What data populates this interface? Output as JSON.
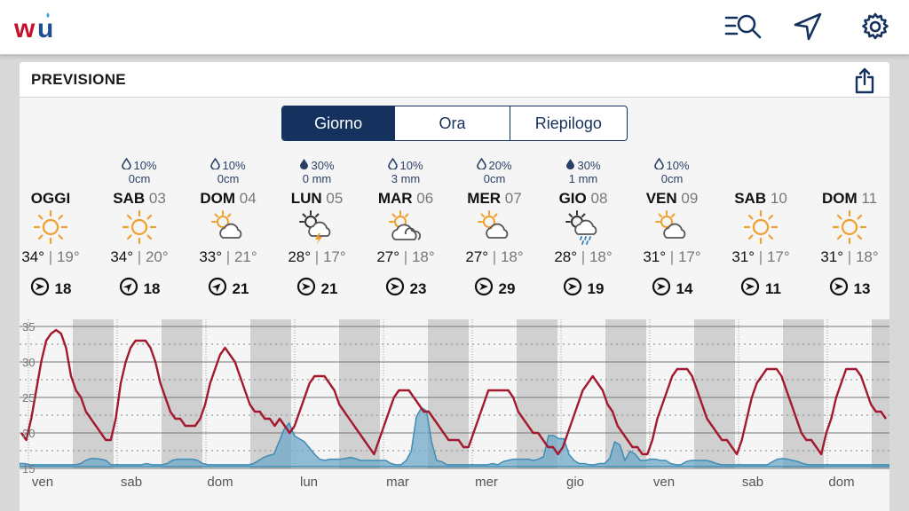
{
  "app": {
    "name": "Weather Underground",
    "colors": {
      "brand_red": "#c8102e",
      "brand_blue": "#1d4f91",
      "navy": "#15325f",
      "temp_line": "#a3192e",
      "precip_fill": "#6fa8c7"
    }
  },
  "toolbar": {
    "icons": [
      "search-list-icon",
      "location-arrow-icon",
      "gear-icon"
    ]
  },
  "forecast": {
    "title": "PREVISIONE",
    "tabs": [
      {
        "label": "Giorno",
        "active": true
      },
      {
        "label": "Ora",
        "active": false
      },
      {
        "label": "Riepilogo",
        "active": false
      }
    ],
    "days": [
      {
        "name": "OGGI",
        "date": "",
        "precip_pct": "",
        "precip_amt": "",
        "icon": "sunny-icon",
        "hi": "34°",
        "lo": "19°",
        "wind": "18",
        "wind_dir": "E"
      },
      {
        "name": "SAB",
        "date": "03",
        "precip_pct": "10%",
        "precip_amt": "0cm",
        "icon": "sunny-icon",
        "hi": "34°",
        "lo": "20°",
        "wind": "18",
        "wind_dir": "NE"
      },
      {
        "name": "DOM",
        "date": "04",
        "precip_pct": "10%",
        "precip_amt": "0cm",
        "icon": "partly-cloudy-icon",
        "hi": "33°",
        "lo": "21°",
        "wind": "21",
        "wind_dir": "NE"
      },
      {
        "name": "LUN",
        "date": "05",
        "precip_pct": "30%",
        "precip_amt": "0 mm",
        "icon": "thunderstorm-icon",
        "hi": "28°",
        "lo": "17°",
        "wind": "21",
        "wind_dir": "E"
      },
      {
        "name": "MAR",
        "date": "06",
        "precip_pct": "10%",
        "precip_amt": "3 mm",
        "icon": "cloudy-icon",
        "hi": "27°",
        "lo": "18°",
        "wind": "23",
        "wind_dir": "E"
      },
      {
        "name": "MER",
        "date": "07",
        "precip_pct": "20%",
        "precip_amt": "0cm",
        "icon": "partly-cloudy-icon",
        "hi": "27°",
        "lo": "18°",
        "wind": "29",
        "wind_dir": "E"
      },
      {
        "name": "GIO",
        "date": "08",
        "precip_pct": "30%",
        "precip_amt": "1 mm",
        "icon": "rain-icon",
        "hi": "28°",
        "lo": "18°",
        "wind": "19",
        "wind_dir": "E"
      },
      {
        "name": "VEN",
        "date": "09",
        "precip_pct": "10%",
        "precip_amt": "0cm",
        "icon": "partly-cloudy-icon",
        "hi": "31°",
        "lo": "17°",
        "wind": "14",
        "wind_dir": "E"
      },
      {
        "name": "SAB",
        "date": "10",
        "precip_pct": "",
        "precip_amt": "",
        "icon": "sunny-icon",
        "hi": "31°",
        "lo": "17°",
        "wind": "11",
        "wind_dir": "E"
      },
      {
        "name": "DOM",
        "date": "11",
        "precip_pct": "",
        "precip_amt": "",
        "icon": "sunny-icon",
        "hi": "31°",
        "lo": "18°",
        "wind": "13",
        "wind_dir": "E"
      }
    ]
  },
  "chart_data": {
    "type": "line",
    "y_ticks": [
      "35",
      "30",
      "25",
      "20",
      "15"
    ],
    "ylim": [
      15,
      36
    ],
    "x_labels": [
      "ven",
      "sab",
      "dom",
      "lun",
      "mar",
      "mer",
      "gio",
      "ven",
      "sab",
      "dom"
    ],
    "series": [
      {
        "kind": "temperature",
        "values": [
          20,
          19,
          22,
          26,
          30,
          33,
          34,
          34.5,
          34,
          32,
          28,
          26,
          25,
          23,
          22,
          21,
          20,
          19,
          19,
          22,
          27,
          30,
          32,
          33,
          33,
          33,
          32,
          30,
          27,
          25,
          23,
          22,
          22,
          21,
          21,
          21,
          22,
          24,
          27,
          29,
          31,
          32,
          31,
          30,
          28,
          26,
          24,
          23,
          23,
          22,
          22,
          21,
          22,
          21,
          20,
          21,
          23,
          25,
          27,
          28,
          28,
          28,
          27,
          26,
          24,
          23,
          22,
          21,
          20,
          19,
          18,
          17,
          19,
          21,
          23,
          25,
          26,
          26,
          26,
          25,
          24,
          23,
          23,
          22,
          21,
          20,
          19,
          19,
          19,
          18,
          18,
          20,
          22,
          24,
          26,
          26,
          26,
          26,
          26,
          25,
          23,
          22,
          21,
          20,
          20,
          19,
          18,
          18,
          17,
          18,
          20,
          22,
          24,
          26,
          27,
          28,
          27,
          26,
          24,
          23,
          21,
          20,
          19,
          18,
          18,
          17,
          17,
          19,
          22,
          24,
          26,
          28,
          29,
          29,
          29,
          28,
          26,
          24,
          22,
          21,
          20,
          19,
          19,
          18,
          17,
          19,
          22,
          25,
          27,
          28,
          29,
          29,
          29,
          28,
          26,
          24,
          22,
          20,
          19,
          19,
          18,
          17,
          20,
          22,
          25,
          27,
          29,
          29,
          29,
          28,
          26,
          24,
          23,
          23,
          22
        ]
      },
      {
        "kind": "precipitation",
        "values": [
          0.5,
          0.5,
          0.3,
          0.3,
          0.3,
          0.3,
          0.3,
          0.3,
          0.3,
          0.3,
          0.3,
          0.3,
          0.5,
          1,
          1.3,
          1.3,
          1.2,
          1,
          0.3,
          0.3,
          0.3,
          0.3,
          0.3,
          0.3,
          0.3,
          0.5,
          0.3,
          0.3,
          0.3,
          0.5,
          1,
          1.2,
          1.2,
          1.2,
          1.2,
          1,
          0.5,
          0.3,
          0.3,
          0.3,
          0.3,
          0.3,
          0.3,
          0.3,
          0.3,
          0.3,
          0.5,
          1,
          1.5,
          1.8,
          2,
          4,
          6,
          7,
          5,
          4.5,
          4,
          3,
          2,
          1.2,
          1,
          1.2,
          1.2,
          1.2,
          1.3,
          1.5,
          1.3,
          1,
          1,
          1,
          1,
          1,
          1,
          0.5,
          0.3,
          0.3,
          1,
          2.5,
          8,
          9.5,
          9,
          4,
          1,
          0.8,
          0.3,
          0.3,
          0.3,
          0.3,
          0.3,
          0.3,
          0.3,
          0.3,
          0.3,
          0.5,
          0.3,
          0.8,
          1,
          1.2,
          1.2,
          1.2,
          1.2,
          1,
          1.2,
          1.6,
          5,
          5,
          4.5,
          4.5,
          2,
          1,
          0.5,
          0.5,
          0.3,
          0.3,
          0.5,
          0.5,
          1.3,
          4,
          3.5,
          1,
          2.5,
          2,
          1,
          1,
          1.2,
          1.2,
          1,
          1,
          0.5,
          0.3,
          0.3,
          0.8,
          1,
          1,
          1,
          1,
          0.8,
          0.5,
          0.3,
          0.3,
          0.3,
          0.3,
          0.3,
          0.3,
          0.3,
          0.3,
          0.3,
          0.3,
          0.8,
          1.2,
          1.3,
          1.2,
          1,
          0.8,
          0.5,
          0.3,
          0.3,
          0.3,
          0.3,
          0.3,
          0.3,
          0.3,
          0.3,
          0.3,
          0.3,
          0.3,
          0.3,
          0.3,
          0.3,
          0.3,
          0.3,
          0.3
        ]
      }
    ]
  }
}
